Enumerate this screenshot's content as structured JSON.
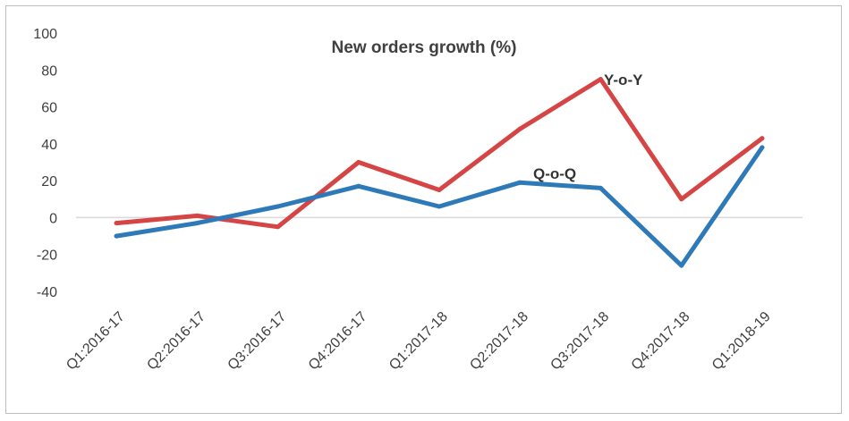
{
  "chart_data": {
    "type": "line",
    "title": "New orders growth (%)",
    "xlabel": "",
    "ylabel": "",
    "ylim": [
      -40,
      100
    ],
    "yticks": [
      100,
      80,
      60,
      40,
      20,
      0,
      -20,
      -40
    ],
    "grid": false,
    "legend": "none",
    "categories": [
      "Q1:2016-17",
      "Q2:2016-17",
      "Q3:2016-17",
      "Q4:2016-17",
      "Q1:2017-18",
      "Q2:2017-18",
      "Q3:2017-18",
      "Q4:2017-18",
      "Q1:2018-19"
    ],
    "series": [
      {
        "name": "Y-o-Y",
        "color": "#d64545",
        "values": [
          -3,
          1,
          -5,
          30,
          15,
          48,
          75,
          10,
          43
        ]
      },
      {
        "name": "Q-o-Q",
        "color": "#2e7ab8",
        "values": [
          -10,
          -3,
          6,
          17,
          6,
          19,
          16,
          -26,
          38
        ]
      }
    ]
  }
}
